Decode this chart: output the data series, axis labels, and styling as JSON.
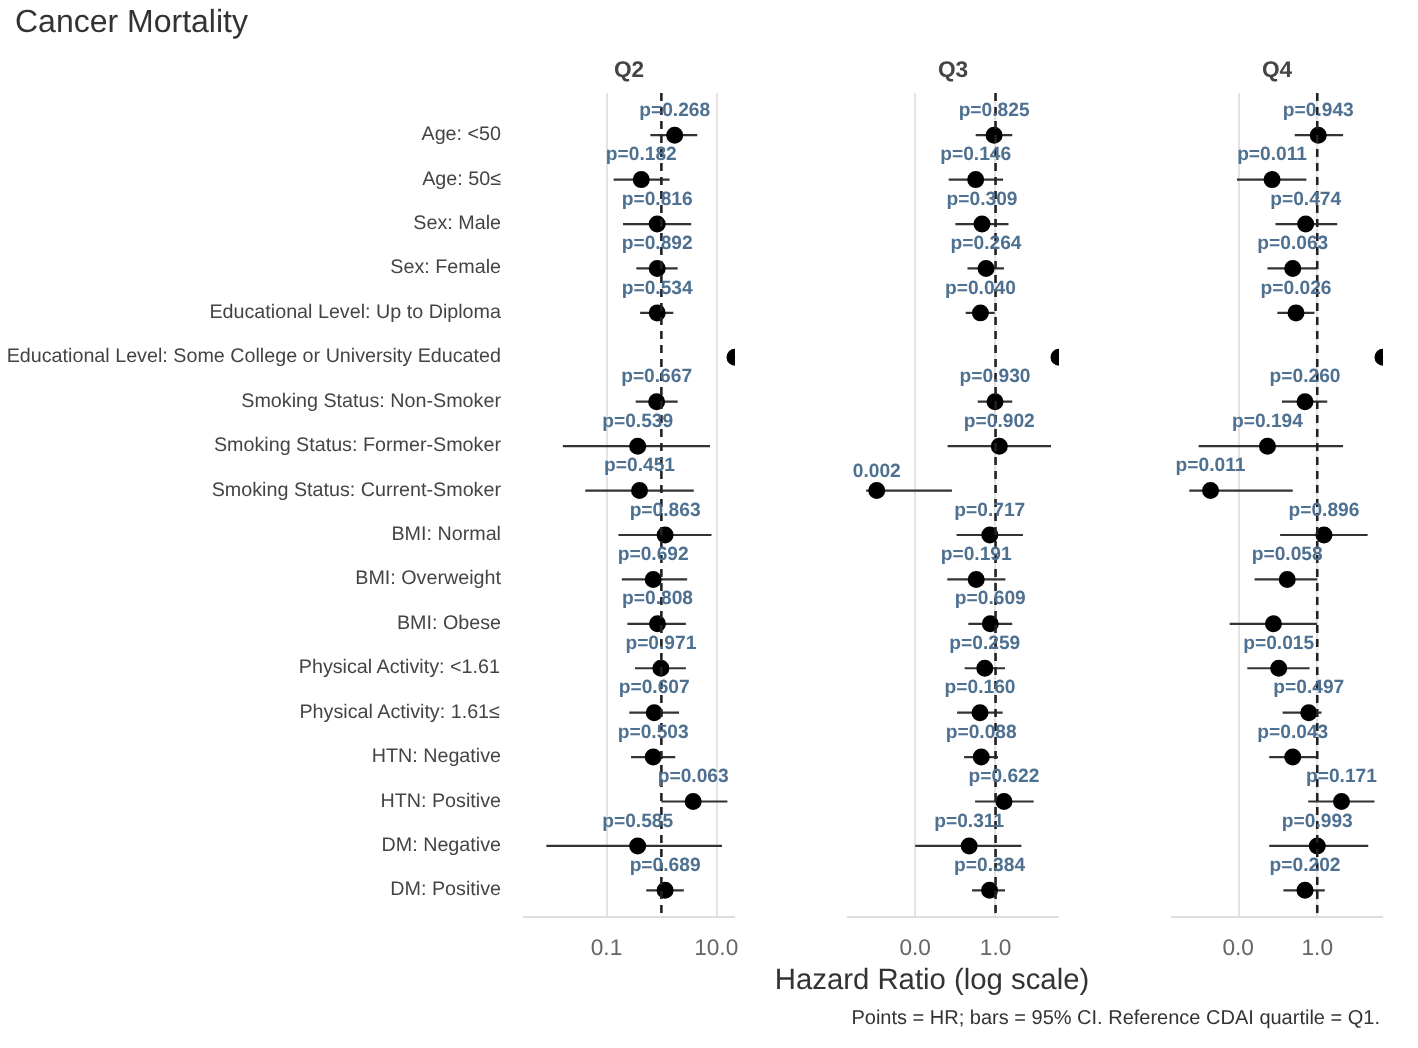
{
  "chart_data": [
    {
      "type": "scatter",
      "orientation": "horizontal",
      "title": "Cancer Mortality",
      "subtitle": "Q2",
      "tick_labels": "xy",
      "categories": [
        "Age: <50",
        "Age: 50≤",
        "Sex: Male",
        "Sex: Female",
        "Educational Level: Up to Diploma",
        "Educational Level: Some College or University Educated",
        "Smoking Status: Non-Smoker",
        "Smoking Status: Former-Smoker",
        "Smoking Status: Current-Smoker",
        "BMI: Normal",
        "BMI: Overweight",
        "BMI: Obese",
        "Physical Activity: <1.61",
        "Physical Activity: 1.61≤",
        "HTN: Negative",
        "HTN: Positive",
        "DM: Negative",
        "DM: Positive"
      ],
      "values": [
        1.75,
        0.43,
        0.84,
        0.84,
        0.84,
        22,
        0.82,
        0.37,
        0.4,
        1.17,
        0.71,
        0.85,
        0.98,
        0.74,
        0.71,
        3.8,
        0.37,
        1.17
      ],
      "errors": [
        [
          0.63,
          4.5
        ],
        [
          0.135,
          1.41
        ],
        [
          0.2,
          3.5
        ],
        [
          0.35,
          1.98
        ],
        [
          0.41,
          1.65
        ],
        null,
        [
          0.34,
          1.98
        ],
        [
          0.016,
          7.7
        ],
        [
          0.041,
          3.9
        ],
        [
          0.165,
          8.2
        ],
        [
          0.19,
          2.95
        ],
        [
          0.24,
          2.8
        ],
        [
          0.33,
          2.8
        ],
        [
          0.26,
          2.1
        ],
        [
          0.28,
          1.79
        ],
        [
          1.0,
          16
        ],
        [
          0.008,
          12.7
        ],
        [
          0.53,
          2.57
        ]
      ],
      "annotations": [
        {
          "text": "p=0.268",
          "x": 1.75,
          "y": "Age: <50"
        },
        {
          "text": "p=0.182",
          "x": 0.43,
          "y": "Age: 50≤"
        },
        {
          "text": "p=0.816",
          "x": 0.84,
          "y": "Sex: Male"
        },
        {
          "text": "p=0.892",
          "x": 0.84,
          "y": "Sex: Female"
        },
        {
          "text": "p=0.534",
          "x": 0.84,
          "y": "Educational Level: Up to Diploma"
        },
        {
          "text": "p=0.667",
          "x": 0.82,
          "y": "Smoking Status: Non-Smoker"
        },
        {
          "text": "p=0.539",
          "x": 0.37,
          "y": "Smoking Status: Former-Smoker"
        },
        {
          "text": "p=0.451",
          "x": 0.4,
          "y": "Smoking Status: Current-Smoker"
        },
        {
          "text": "p=0.863",
          "x": 1.17,
          "y": "BMI: Normal"
        },
        {
          "text": "p=0.692",
          "x": 0.71,
          "y": "BMI: Overweight"
        },
        {
          "text": "p=0.808",
          "x": 0.85,
          "y": "BMI: Obese"
        },
        {
          "text": "p=0.971",
          "x": 0.98,
          "y": "Physical Activity: <1.61"
        },
        {
          "text": "p=0.607",
          "x": 0.74,
          "y": "Physical Activity: 1.61≤"
        },
        {
          "text": "p=0.503",
          "x": 0.71,
          "y": "HTN: Negative"
        },
        {
          "text": "p=0.063",
          "x": 3.8,
          "y": "HTN: Positive"
        },
        {
          "text": "p=0.585",
          "x": 0.37,
          "y": "DM: Negative"
        },
        {
          "text": "p=0.689",
          "x": 1.17,
          "y": "DM: Positive"
        }
      ],
      "color": "#000000",
      "marker": "circle",
      "log": "x",
      "grid": "x",
      "xlim": [
        0.003,
        22
      ],
      "xticks": [
        0.1,
        {
          "value": 10,
          "label": "10.0"
        }
      ],
      "ref_lines": [
        {
          "axis": "x",
          "value": 1,
          "line_style": "dashed"
        }
      ]
    },
    {
      "type": "scatter",
      "orientation": "horizontal",
      "subtitle": "Q3",
      "xlabel": "Hazard Ratio (log scale)",
      "tick_labels": "x",
      "categories": [
        "Age: <50",
        "Age: 50≤",
        "Sex: Male",
        "Sex: Female",
        "Educational Level: Up to Diploma",
        "Educational Level: Some College or University Educated",
        "Smoking Status: Non-Smoker",
        "Smoking Status: Former-Smoker",
        "Smoking Status: Current-Smoker",
        "BMI: Normal",
        "BMI: Overweight",
        "BMI: Obese",
        "Physical Activity: <1.61",
        "Physical Activity: 1.61≤",
        "HTN: Negative",
        "HTN: Positive",
        "DM: Negative",
        "DM: Positive"
      ],
      "values": [
        0.92,
        0.32,
        0.46,
        0.58,
        0.42,
        38,
        0.97,
        1.24,
        0.0011,
        0.72,
        0.33,
        0.74,
        0.54,
        0.41,
        0.44,
        1.62,
        0.22,
        0.71
      ],
      "errors": [
        [
          0.32,
          2.6
        ],
        [
          0.068,
          1.54
        ],
        [
          0.1,
          2.1
        ],
        [
          0.2,
          1.62
        ],
        [
          0.18,
          0.95
        ],
        null,
        [
          0.36,
          2.6
        ],
        [
          0.064,
          24
        ],
        [
          0.0006,
          0.082
        ],
        [
          0.107,
          4.8
        ],
        [
          0.063,
          1.76
        ],
        [
          0.21,
          2.6
        ],
        [
          0.17,
          1.72
        ],
        [
          0.11,
          1.5
        ],
        [
          0.165,
          1.15
        ],
        [
          0.31,
          8.9
        ],
        [
          0.01,
          4.4
        ],
        [
          0.26,
          1.72
        ]
      ],
      "annotations": [
        {
          "text": "p=0.825",
          "x": 0.92,
          "y": "Age: <50"
        },
        {
          "text": "p=0.146",
          "x": 0.32,
          "y": "Age: 50≤"
        },
        {
          "text": "p=0.309",
          "x": 0.46,
          "y": "Sex: Male"
        },
        {
          "text": "p=0.264",
          "x": 0.58,
          "y": "Sex: Female"
        },
        {
          "text": "p=0.040",
          "x": 0.42,
          "y": "Educational Level: Up to Diploma"
        },
        {
          "text": "p=0.930",
          "x": 0.97,
          "y": "Smoking Status: Non-Smoker"
        },
        {
          "text": "p=0.902",
          "x": 1.24,
          "y": "Smoking Status: Former-Smoker"
        },
        {
          "text": "0.002",
          "x": 0.0011,
          "y": "Smoking Status: Current-Smoker"
        },
        {
          "text": "p=0.717",
          "x": 0.72,
          "y": "BMI: Normal"
        },
        {
          "text": "p=0.191",
          "x": 0.33,
          "y": "BMI: Overweight"
        },
        {
          "text": "p=0.609",
          "x": 0.74,
          "y": "BMI: Obese"
        },
        {
          "text": "p=0.259",
          "x": 0.54,
          "y": "Physical Activity: <1.61"
        },
        {
          "text": "p=0.160",
          "x": 0.41,
          "y": "Physical Activity: 1.61≤"
        },
        {
          "text": "p=0.088",
          "x": 0.44,
          "y": "HTN: Negative"
        },
        {
          "text": "p=0.622",
          "x": 1.62,
          "y": "HTN: Positive"
        },
        {
          "text": "p=0.311",
          "x": 0.22,
          "y": "DM: Negative"
        },
        {
          "text": "p=0.384",
          "x": 0.71,
          "y": "DM: Positive"
        }
      ],
      "color": "#000000",
      "marker": "circle",
      "log": "x",
      "grid": "x",
      "xlim": [
        0.0002,
        38
      ],
      "xticks": [
        {
          "value": 0.01,
          "label": "0.0"
        },
        {
          "value": 1,
          "label": "1.0"
        }
      ],
      "ref_lines": [
        {
          "axis": "x",
          "value": 1,
          "line_style": "dashed"
        }
      ]
    },
    {
      "type": "scatter",
      "orientation": "horizontal",
      "subtitle": "Q4",
      "tick_labels": "x",
      "categories": [
        "Age: <50",
        "Age: 50≤",
        "Sex: Male",
        "Sex: Female",
        "Educational Level: Up to Diploma",
        "Educational Level: Some College or University Educated",
        "Smoking Status: Non-Smoker",
        "Smoking Status: Former-Smoker",
        "Smoking Status: Current-Smoker",
        "BMI: Normal",
        "BMI: Overweight",
        "BMI: Obese",
        "Physical Activity: <1.61",
        "Physical Activity: 1.61≤",
        "HTN: Negative",
        "HTN: Positive",
        "DM: Negative",
        "DM: Positive"
      ],
      "values": [
        1.06,
        0.072,
        0.51,
        0.24,
        0.29,
        46,
        0.49,
        0.055,
        0.002,
        1.48,
        0.174,
        0.078,
        0.106,
        0.61,
        0.24,
        4.1,
        1.0,
        0.49
      ],
      "errors": [
        [
          0.27,
          4.5
        ],
        [
          0.0093,
          0.53
        ],
        [
          0.088,
          3.2
        ],
        [
          0.055,
          1.0
        ],
        [
          0.098,
          0.85
        ],
        null,
        [
          0.128,
          1.79
        ],
        [
          0.001,
          4.5
        ],
        [
          0.00058,
          0.24
        ],
        [
          0.115,
          18.8
        ],
        [
          0.026,
          1.0
        ],
        [
          0.0061,
          0.98
        ],
        [
          0.017,
          0.64
        ],
        [
          0.133,
          1.28
        ],
        [
          0.061,
          0.98
        ],
        [
          0.59,
          28
        ],
        [
          0.061,
          19.5
        ],
        [
          0.139,
          1.55
        ]
      ],
      "annotations": [
        {
          "text": "p=0.943",
          "x": 1.06,
          "y": "Age: <50"
        },
        {
          "text": "p=0.011",
          "x": 0.072,
          "y": "Age: 50≤"
        },
        {
          "text": "p=0.474",
          "x": 0.51,
          "y": "Sex: Male"
        },
        {
          "text": "p=0.063",
          "x": 0.24,
          "y": "Sex: Female"
        },
        {
          "text": "p=0.026",
          "x": 0.29,
          "y": "Educational Level: Up to Diploma"
        },
        {
          "text": "p=0.260",
          "x": 0.49,
          "y": "Smoking Status: Non-Smoker"
        },
        {
          "text": "p=0.194",
          "x": 0.055,
          "y": "Smoking Status: Former-Smoker"
        },
        {
          "text": "p=0.011",
          "x": 0.002,
          "y": "Smoking Status: Current-Smoker"
        },
        {
          "text": "p=0.896",
          "x": 1.48,
          "y": "BMI: Normal"
        },
        {
          "text": "p=0.058",
          "x": 0.174,
          "y": "BMI: Overweight"
        },
        {
          "text": "p=0.015",
          "x": 0.106,
          "y": "Physical Activity: <1.61"
        },
        {
          "text": "p=0.497",
          "x": 0.61,
          "y": "Physical Activity: 1.61≤"
        },
        {
          "text": "p=0.043",
          "x": 0.24,
          "y": "HTN: Negative"
        },
        {
          "text": "p=0.171",
          "x": 4.1,
          "y": "HTN: Positive"
        },
        {
          "text": "p=0.993",
          "x": 1.0,
          "y": "DM: Negative"
        },
        {
          "text": "p=0.202",
          "x": 0.49,
          "y": "DM: Positive"
        },
        "Points = HR; bars = 95% CI. Reference CDAI quartile = Q1."
      ],
      "color": "#000000",
      "marker": "circle",
      "log": "x",
      "grid": "x",
      "xlim": [
        0.0002,
        46
      ],
      "xticks": [
        {
          "value": 0.01,
          "label": "0.0"
        },
        {
          "value": 1,
          "label": "1.0"
        }
      ],
      "ref_lines": [
        {
          "axis": "x",
          "value": 1,
          "line_style": "dashed"
        }
      ]
    }
  ]
}
